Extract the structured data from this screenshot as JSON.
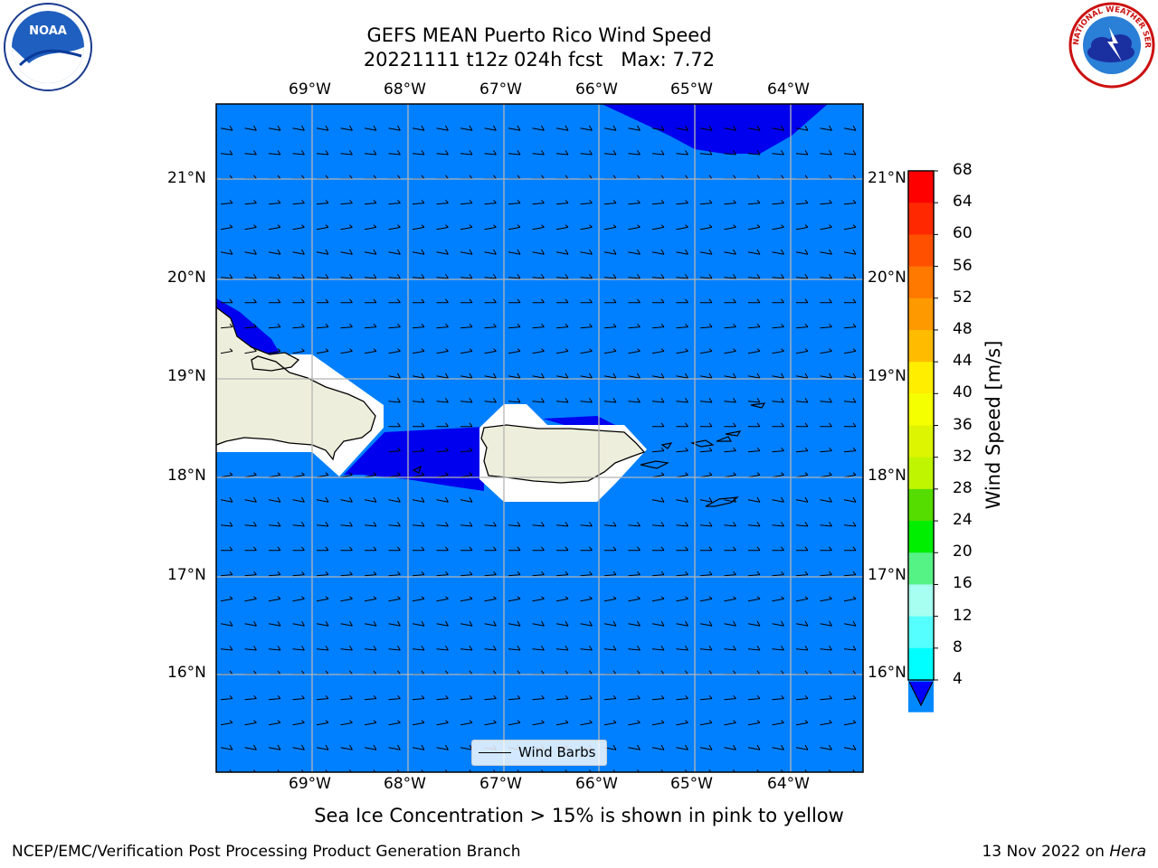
{
  "title_line1": "GEFS MEAN Puerto Rico Wind Speed",
  "title_line2": "20221111 t12z 024h fcst   Max: 7.72",
  "longitude_labels": [
    "69°W",
    "68°W",
    "67°W",
    "66°W",
    "65°W",
    "64°W"
  ],
  "latitude_labels": [
    "21°N",
    "20°N",
    "19°N",
    "18°N",
    "17°N",
    "16°N"
  ],
  "colorbar": {
    "label": "Wind Speed [m/s]",
    "ticks": [
      "68",
      "64",
      "60",
      "56",
      "52",
      "48",
      "44",
      "40",
      "36",
      "32",
      "28",
      "24",
      "20",
      "16",
      "12",
      "8",
      "4"
    ],
    "colors": [
      "#ff0000",
      "#ff2800",
      "#ff5000",
      "#ff7800",
      "#ff9900",
      "#ffbb00",
      "#ffee00",
      "#f5ff00",
      "#ddf500",
      "#c0f500",
      "#55dd00",
      "#00ee00",
      "#55f285",
      "#a6fff0",
      "#55ffff",
      "#00ffff",
      "#0088ff"
    ],
    "extend_color": "#0000ff"
  },
  "map": {
    "ocean_color": "#0080ff",
    "slow_zone_color": "#0000ee",
    "land_color": "#eeeedc",
    "islands": [
      "Hispaniola",
      "Puerto Rico",
      "Virgin Islands"
    ]
  },
  "legend": {
    "label": "Wind Barbs"
  },
  "bottom_note": "Sea Ice Concentration > 15% is shown in pink to yellow",
  "footer_left": "NCEP/EMC/Verification Post Processing Product Generation Branch",
  "footer_right": {
    "date": "13 Nov 2022 on",
    "host": "Hera"
  },
  "logos": {
    "noaa_text": "NOAA",
    "nws_text": "NATIONAL WEATHER SERVICE"
  }
}
